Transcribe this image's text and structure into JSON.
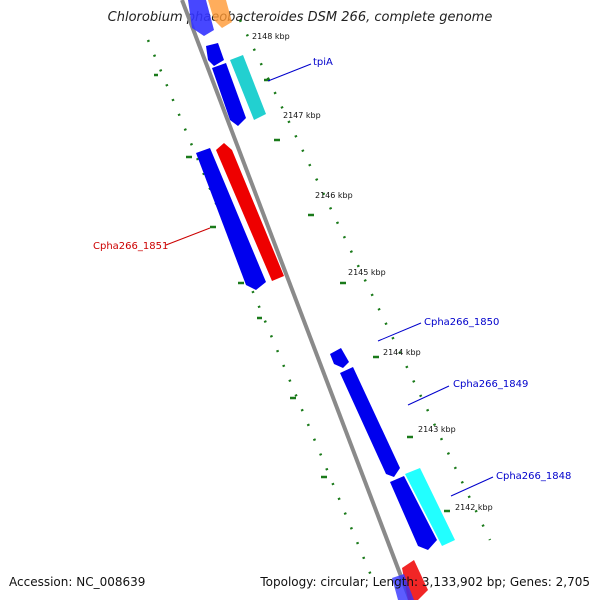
{
  "title": "Chlorobium phaeobacteroides DSM 266, complete genome",
  "footer": {
    "accession": "Accession: NC_008639",
    "topology": "Topology: circular; Length: 3,133,902 bp; Genes: 2,705"
  },
  "colors": {
    "backbone": "#808080",
    "tick": "#1a7a1a",
    "forward_gene": "#0000ee",
    "reverse_gene": "#ee0000",
    "rna_gene": "#22d0d0",
    "label_blue": "#0000cc",
    "label_red": "#cc0000"
  },
  "ticks": [
    {
      "label": "2148 kbp"
    },
    {
      "label": "2147 kbp"
    },
    {
      "label": "2146 kbp"
    },
    {
      "label": "2145 kbp"
    },
    {
      "label": "2144 kbp"
    },
    {
      "label": "2143 kbp"
    },
    {
      "label": "2142 kbp"
    }
  ],
  "gene_labels": [
    {
      "text": "tpiA",
      "color": "blue"
    },
    {
      "text": "Cpha266_1851",
      "color": "red"
    },
    {
      "text": "Cpha266_1850",
      "color": "blue"
    },
    {
      "text": "Cpha266_1849",
      "color": "blue"
    },
    {
      "text": "Cpha266_1848",
      "color": "blue"
    }
  ]
}
